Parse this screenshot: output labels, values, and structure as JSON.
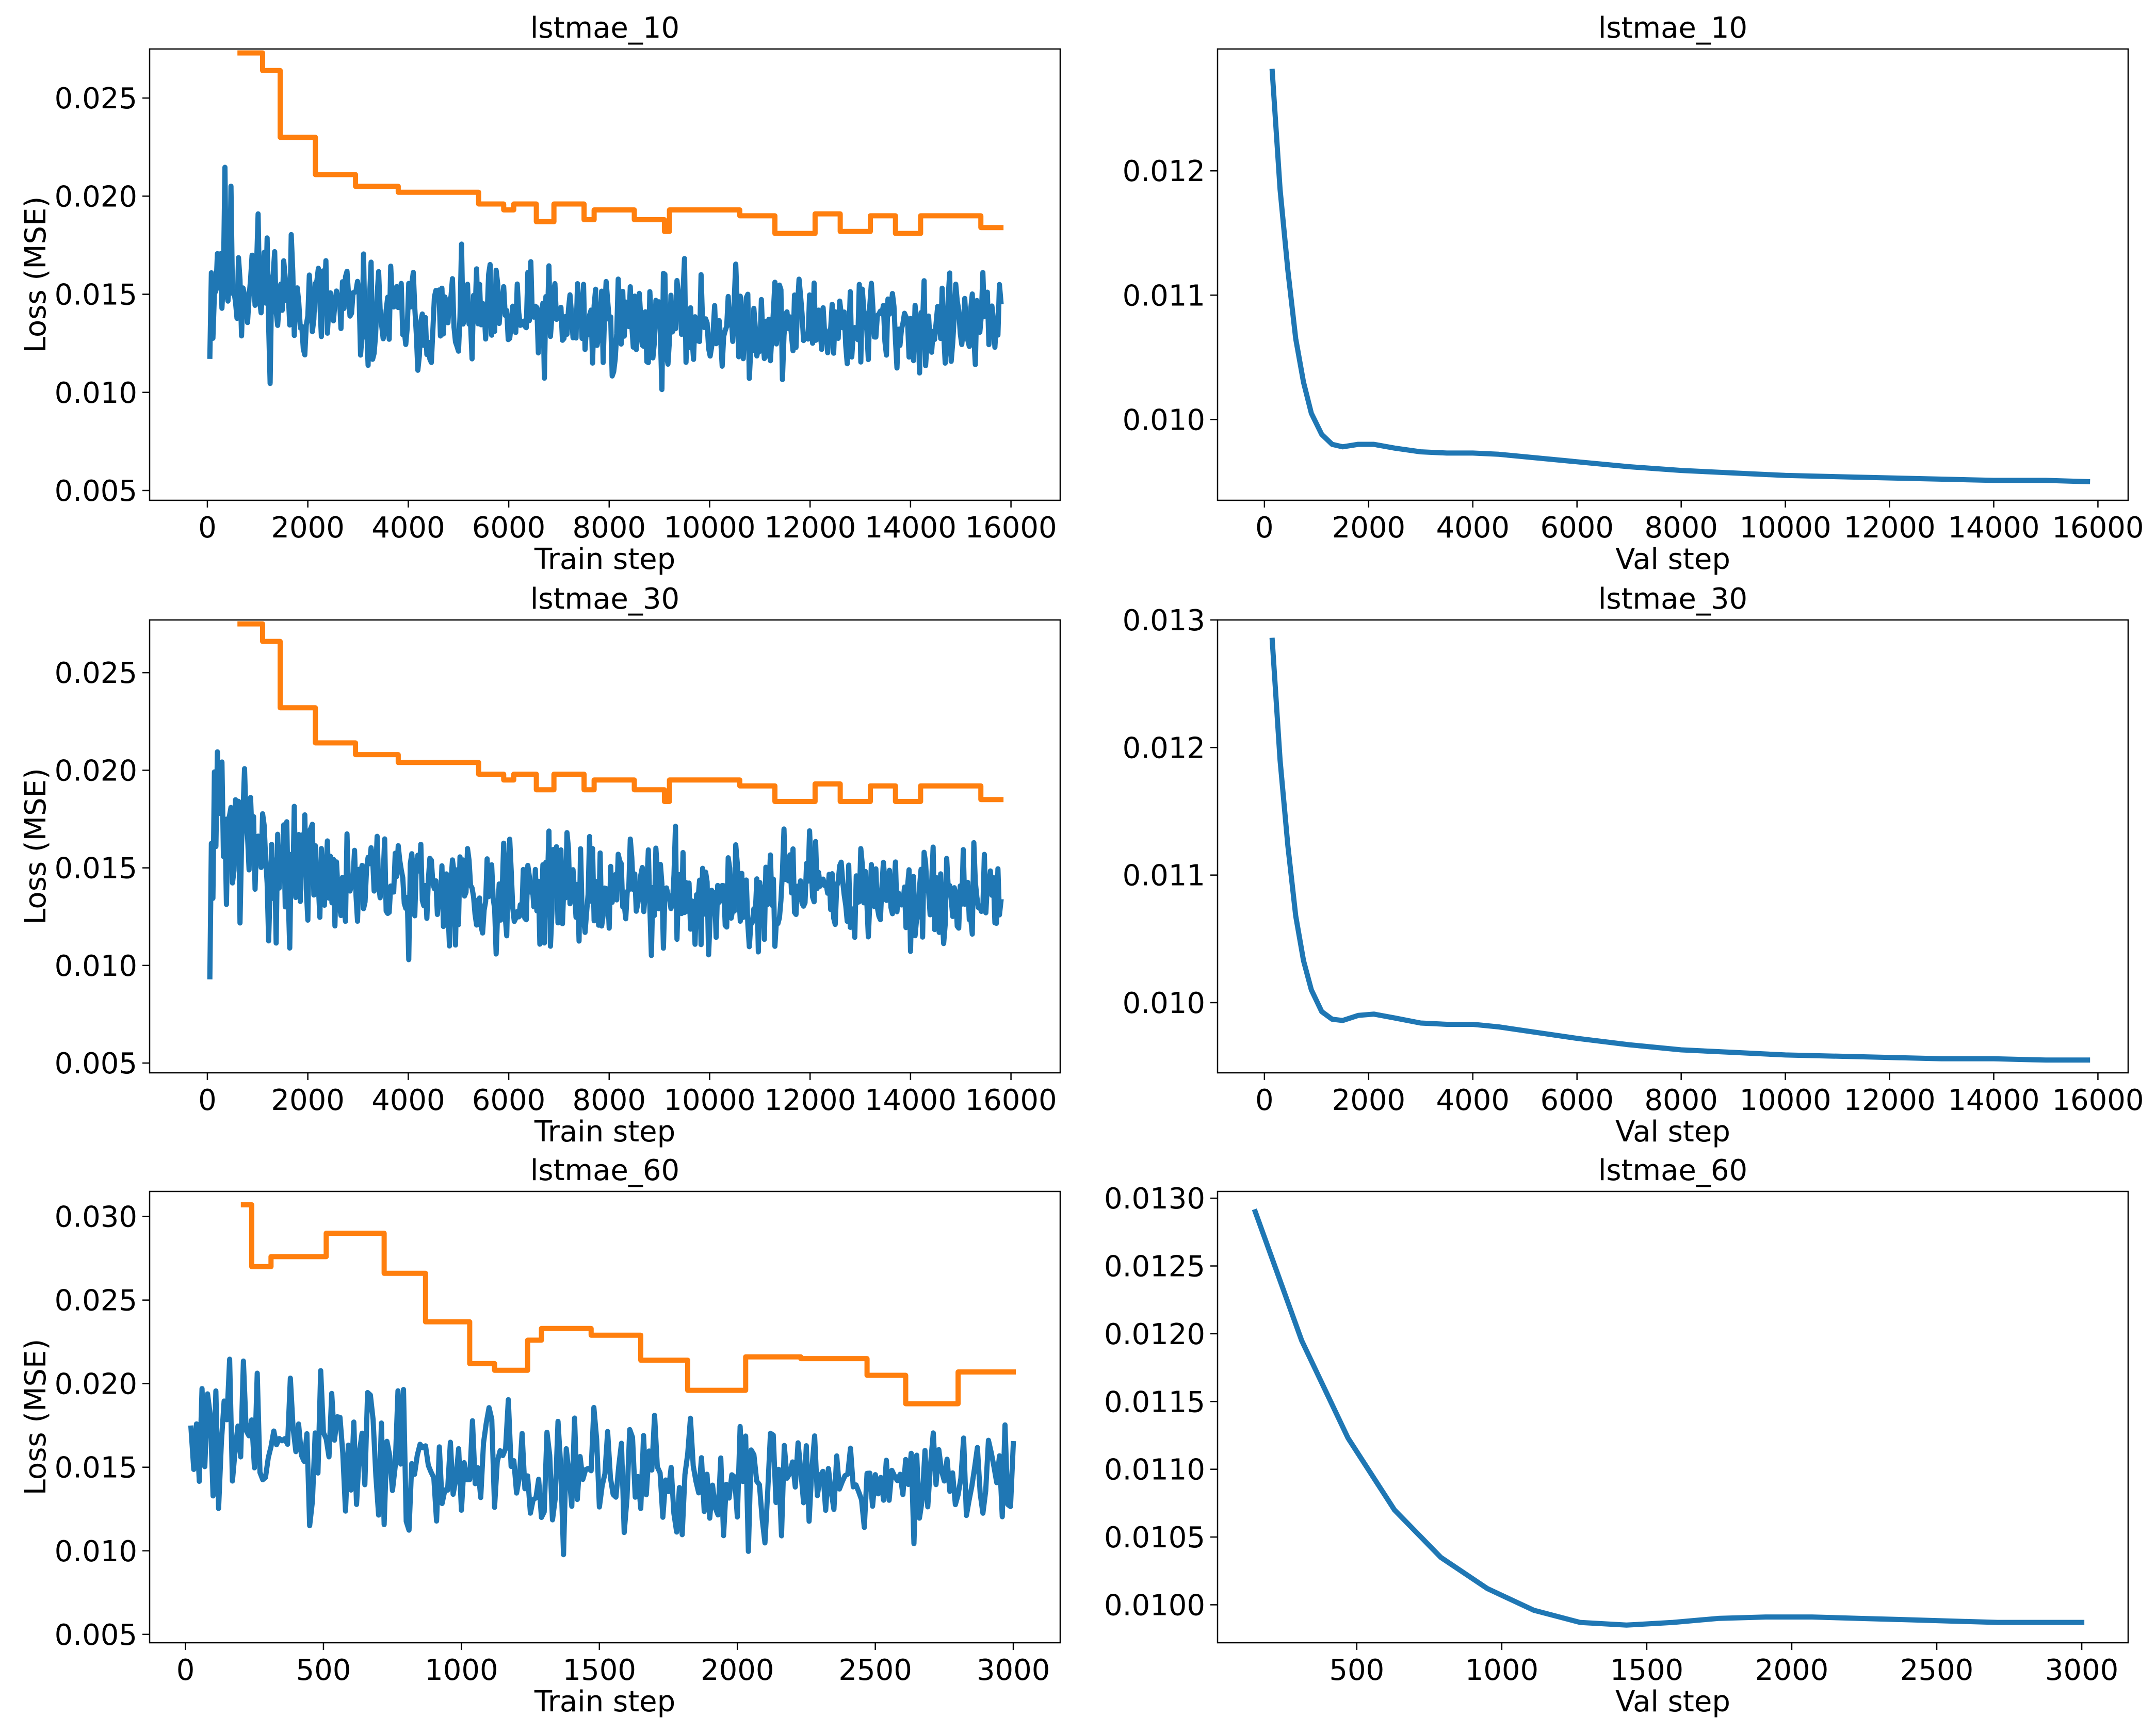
{
  "colors": {
    "train": "#1f77b4",
    "max": "#ff7f0e",
    "frame": "#000000"
  },
  "chart_data": [
    {
      "type": "line",
      "title": "lstmae_10",
      "xlabel": "Train step",
      "ylabel": "Loss (MSE)",
      "xlim": [
        -1150,
        16980
      ],
      "ylim": [
        0.0045,
        0.0275
      ],
      "xticks": [
        0,
        2000,
        4000,
        6000,
        8000,
        10000,
        12000,
        14000,
        16000
      ],
      "xtick_labels": [
        "0",
        "2000",
        "4000",
        "6000",
        "8000",
        "10000",
        "12000",
        "14000",
        "16000"
      ],
      "yticks": [
        0.005,
        0.01,
        0.015,
        0.02,
        0.025
      ],
      "ytick_labels": [
        "0.005",
        "0.010",
        "0.015",
        "0.020",
        "0.025"
      ],
      "series": [
        {
          "role": "train",
          "color": "#1f77b4",
          "noisy": true,
          "seed": 11,
          "x": [
            50,
            200,
            400,
            700,
            1000,
            1500,
            2000,
            3000,
            4000,
            6000,
            8000,
            10000,
            12000,
            14000,
            15800
          ],
          "base": [
            0.015,
            0.017,
            0.0165,
            0.016,
            0.0155,
            0.015,
            0.0145,
            0.014,
            0.0138,
            0.0137,
            0.0136,
            0.0135,
            0.0135,
            0.0134,
            0.0134
          ],
          "amp": [
            0.0075,
            0.008,
            0.007,
            0.006,
            0.0055,
            0.005,
            0.0045,
            0.0042,
            0.004,
            0.004,
            0.004,
            0.0039,
            0.0038,
            0.0037,
            0.0036
          ],
          "step": 30,
          "min": 0.0058,
          "max": 0.0273
        },
        {
          "role": "max",
          "color": "#ff7f0e",
          "noisy": false,
          "x": [
            650,
            1100,
            1100,
            1450,
            1450,
            2150,
            2150,
            2950,
            2950,
            3800,
            3800,
            5400,
            5400,
            5900,
            5900,
            6100,
            6100,
            6550,
            6550,
            6900,
            6900,
            7500,
            7500,
            7700,
            7700,
            8500,
            8500,
            9100,
            9100,
            9200,
            9200,
            10600,
            10600,
            11300,
            11300,
            12100,
            12100,
            12600,
            12600,
            13200,
            13200,
            13700,
            13700,
            14200,
            14200,
            15400,
            15400,
            15800
          ],
          "y": [
            0.0273,
            0.0273,
            0.0264,
            0.0264,
            0.023,
            0.023,
            0.0211,
            0.0211,
            0.0205,
            0.0205,
            0.0202,
            0.0202,
            0.0196,
            0.0196,
            0.0193,
            0.0193,
            0.0196,
            0.0196,
            0.0187,
            0.0187,
            0.0196,
            0.0196,
            0.0188,
            0.0188,
            0.0193,
            0.0193,
            0.0188,
            0.0188,
            0.0182,
            0.0182,
            0.0193,
            0.0193,
            0.019,
            0.019,
            0.0181,
            0.0181,
            0.0191,
            0.0191,
            0.0182,
            0.0182,
            0.019,
            0.019,
            0.0181,
            0.0181,
            0.019,
            0.019,
            0.0184,
            0.0184
          ]
        }
      ]
    },
    {
      "type": "line",
      "title": "lstmae_10",
      "xlabel": "Val step",
      "ylabel": "",
      "xlim": [
        -900,
        16580
      ],
      "ylim": [
        0.00935,
        0.01298
      ],
      "xticks": [
        0,
        2000,
        4000,
        6000,
        8000,
        10000,
        12000,
        14000,
        16000
      ],
      "xtick_labels": [
        "0",
        "2000",
        "4000",
        "6000",
        "8000",
        "10000",
        "12000",
        "14000",
        "16000"
      ],
      "yticks": [
        0.01,
        0.011,
        0.012
      ],
      "ytick_labels": [
        "0.010",
        "0.011",
        "0.012"
      ],
      "series": [
        {
          "role": "val",
          "color": "#1f77b4",
          "noisy": false,
          "x": [
            150,
            300,
            450,
            600,
            750,
            900,
            1100,
            1300,
            1500,
            1800,
            2100,
            2500,
            3000,
            3500,
            4000,
            4500,
            5000,
            6000,
            7000,
            8000,
            9000,
            10000,
            11000,
            12000,
            13000,
            14000,
            15000,
            15800
          ],
          "y": [
            0.0128,
            0.01185,
            0.0112,
            0.01065,
            0.0103,
            0.01005,
            0.00988,
            0.0098,
            0.00978,
            0.0098,
            0.0098,
            0.00977,
            0.00974,
            0.00973,
            0.00973,
            0.00972,
            0.0097,
            0.00966,
            0.00962,
            0.00959,
            0.00957,
            0.00955,
            0.00954,
            0.00953,
            0.00952,
            0.00951,
            0.00951,
            0.0095
          ]
        }
      ]
    },
    {
      "type": "line",
      "title": "lstmae_30",
      "xlabel": "Train step",
      "ylabel": "Loss (MSE)",
      "xlim": [
        -1150,
        16980
      ],
      "ylim": [
        0.0045,
        0.0277
      ],
      "xticks": [
        0,
        2000,
        4000,
        6000,
        8000,
        10000,
        12000,
        14000,
        16000
      ],
      "xtick_labels": [
        "0",
        "2000",
        "4000",
        "6000",
        "8000",
        "10000",
        "12000",
        "14000",
        "16000"
      ],
      "yticks": [
        0.005,
        0.01,
        0.015,
        0.02,
        0.025
      ],
      "ytick_labels": [
        "0.005",
        "0.010",
        "0.015",
        "0.020",
        "0.025"
      ],
      "series": [
        {
          "role": "train",
          "color": "#1f77b4",
          "noisy": true,
          "seed": 31,
          "x": [
            50,
            200,
            400,
            700,
            1000,
            1500,
            2000,
            3000,
            4000,
            6000,
            8000,
            10000,
            12000,
            14000,
            15800
          ],
          "base": [
            0.015,
            0.0172,
            0.0168,
            0.0162,
            0.0157,
            0.0152,
            0.0147,
            0.0142,
            0.014,
            0.0139,
            0.0138,
            0.0137,
            0.0137,
            0.0136,
            0.0136
          ],
          "amp": [
            0.0075,
            0.008,
            0.007,
            0.0062,
            0.0056,
            0.0051,
            0.0046,
            0.0043,
            0.0041,
            0.0041,
            0.004,
            0.004,
            0.0039,
            0.0038,
            0.0037
          ],
          "step": 30,
          "min": 0.0058,
          "max": 0.0275
        },
        {
          "role": "max",
          "color": "#ff7f0e",
          "noisy": false,
          "x": [
            650,
            1100,
            1100,
            1450,
            1450,
            2150,
            2150,
            2950,
            2950,
            3800,
            3800,
            5400,
            5400,
            5900,
            5900,
            6100,
            6100,
            6550,
            6550,
            6900,
            6900,
            7500,
            7500,
            7700,
            7700,
            8500,
            8500,
            9100,
            9100,
            9200,
            9200,
            10600,
            10600,
            11300,
            11300,
            12100,
            12100,
            12600,
            12600,
            13200,
            13200,
            13700,
            13700,
            14200,
            14200,
            15400,
            15400,
            15800
          ],
          "y": [
            0.0275,
            0.0275,
            0.0266,
            0.0266,
            0.0232,
            0.0232,
            0.0214,
            0.0214,
            0.0208,
            0.0208,
            0.0204,
            0.0204,
            0.0198,
            0.0198,
            0.0195,
            0.0195,
            0.0198,
            0.0198,
            0.019,
            0.019,
            0.0198,
            0.0198,
            0.019,
            0.019,
            0.0195,
            0.0195,
            0.019,
            0.019,
            0.0184,
            0.0184,
            0.0195,
            0.0195,
            0.0192,
            0.0192,
            0.0184,
            0.0184,
            0.0193,
            0.0193,
            0.0184,
            0.0184,
            0.0192,
            0.0192,
            0.0184,
            0.0184,
            0.0192,
            0.0192,
            0.0185,
            0.0185
          ]
        }
      ]
    },
    {
      "type": "line",
      "title": "lstmae_30",
      "xlabel": "Val step",
      "ylabel": "",
      "xlim": [
        -900,
        16580
      ],
      "ylim": [
        0.00945,
        0.013
      ],
      "xticks": [
        0,
        2000,
        4000,
        6000,
        8000,
        10000,
        12000,
        14000,
        16000
      ],
      "xtick_labels": [
        "0",
        "2000",
        "4000",
        "6000",
        "8000",
        "10000",
        "12000",
        "14000",
        "16000"
      ],
      "yticks": [
        0.01,
        0.011,
        0.012,
        0.013
      ],
      "ytick_labels": [
        "0.010",
        "0.011",
        "0.012",
        "0.013"
      ],
      "series": [
        {
          "role": "val",
          "color": "#1f77b4",
          "noisy": false,
          "x": [
            150,
            300,
            450,
            600,
            750,
            900,
            1100,
            1300,
            1500,
            1800,
            2100,
            2500,
            3000,
            3500,
            4000,
            4500,
            5000,
            6000,
            7000,
            8000,
            9000,
            10000,
            11000,
            12000,
            13000,
            14000,
            15000,
            15800
          ],
          "y": [
            0.01284,
            0.0119,
            0.01123,
            0.01068,
            0.01033,
            0.0101,
            0.00993,
            0.00987,
            0.00986,
            0.0099,
            0.00991,
            0.00988,
            0.00984,
            0.00983,
            0.00983,
            0.00981,
            0.00978,
            0.00972,
            0.00967,
            0.00963,
            0.00961,
            0.00959,
            0.00958,
            0.00957,
            0.00956,
            0.00956,
            0.00955,
            0.00955
          ]
        }
      ]
    },
    {
      "type": "line",
      "title": "lstmae_60",
      "xlabel": "Train step",
      "ylabel": "Loss (MSE)",
      "xlim": [
        -130,
        3170
      ],
      "ylim": [
        0.0045,
        0.0315
      ],
      "xticks": [
        0,
        500,
        1000,
        1500,
        2000,
        2500,
        3000
      ],
      "xtick_labels": [
        "0",
        "500",
        "1000",
        "1500",
        "2000",
        "2500",
        "3000"
      ],
      "yticks": [
        0.005,
        0.01,
        0.015,
        0.02,
        0.025,
        0.03
      ],
      "ytick_labels": [
        "0.005",
        "0.010",
        "0.015",
        "0.020",
        "0.025",
        "0.030"
      ],
      "series": [
        {
          "role": "train",
          "color": "#1f77b4",
          "noisy": true,
          "seed": 61,
          "x": [
            20,
            100,
            300,
            600,
            1000,
            1500,
            2000,
            2500,
            3000
          ],
          "base": [
            0.0165,
            0.0165,
            0.016,
            0.0155,
            0.0148,
            0.0145,
            0.0142,
            0.014,
            0.0145
          ],
          "amp": [
            0.008,
            0.0085,
            0.008,
            0.007,
            0.0062,
            0.0058,
            0.0055,
            0.005,
            0.0048
          ],
          "step": 10,
          "min": 0.0058,
          "max": 0.0307
        },
        {
          "role": "max",
          "color": "#ff7f0e",
          "noisy": false,
          "x": [
            210,
            240,
            240,
            310,
            310,
            510,
            510,
            720,
            720,
            870,
            870,
            1030,
            1030,
            1120,
            1120,
            1240,
            1240,
            1290,
            1290,
            1470,
            1470,
            1650,
            1650,
            1820,
            1820,
            2030,
            2030,
            2230,
            2230,
            2470,
            2470,
            2550,
            2550,
            2610,
            2610,
            2700,
            2700,
            2800,
            2800,
            3000
          ],
          "y": [
            0.0307,
            0.0307,
            0.027,
            0.027,
            0.0276,
            0.0276,
            0.029,
            0.029,
            0.0266,
            0.0266,
            0.0237,
            0.0237,
            0.0212,
            0.0212,
            0.0208,
            0.0208,
            0.0226,
            0.0226,
            0.0233,
            0.0233,
            0.0229,
            0.0229,
            0.0214,
            0.0214,
            0.0196,
            0.0196,
            0.0216,
            0.0216,
            0.0215,
            0.0215,
            0.0205,
            0.0205,
            0.0205,
            0.0205,
            0.0188,
            0.0188,
            0.0188,
            0.0188,
            0.0207,
            0.0207
          ]
        }
      ]
    },
    {
      "type": "line",
      "title": "lstmae_60",
      "xlabel": "Val step",
      "ylabel": "",
      "xlim": [
        20,
        3160
      ],
      "ylim": [
        0.00972,
        0.01305
      ],
      "xticks": [
        500,
        1000,
        1500,
        2000,
        2500,
        3000
      ],
      "xtick_labels": [
        "500",
        "1000",
        "1500",
        "2000",
        "2500",
        "3000"
      ],
      "yticks": [
        0.01,
        0.0105,
        0.011,
        0.0115,
        0.012,
        0.0125,
        0.013
      ],
      "ytick_labels": [
        "0.0100",
        "0.0105",
        "0.0110",
        "0.0115",
        "0.0120",
        "0.0125",
        "0.0130"
      ],
      "series": [
        {
          "role": "val",
          "color": "#1f77b4",
          "noisy": false,
          "x": [
            150,
            310,
            470,
            630,
            790,
            950,
            1110,
            1270,
            1430,
            1590,
            1750,
            1910,
            2070,
            2230,
            2390,
            2550,
            2710,
            2870,
            3000
          ],
          "y": [
            0.0129,
            0.01195,
            0.01123,
            0.0107,
            0.01035,
            0.01012,
            0.00996,
            0.00987,
            0.00985,
            0.00987,
            0.0099,
            0.00991,
            0.00991,
            0.0099,
            0.00989,
            0.00988,
            0.00987,
            0.00987,
            0.00987
          ]
        }
      ]
    }
  ]
}
